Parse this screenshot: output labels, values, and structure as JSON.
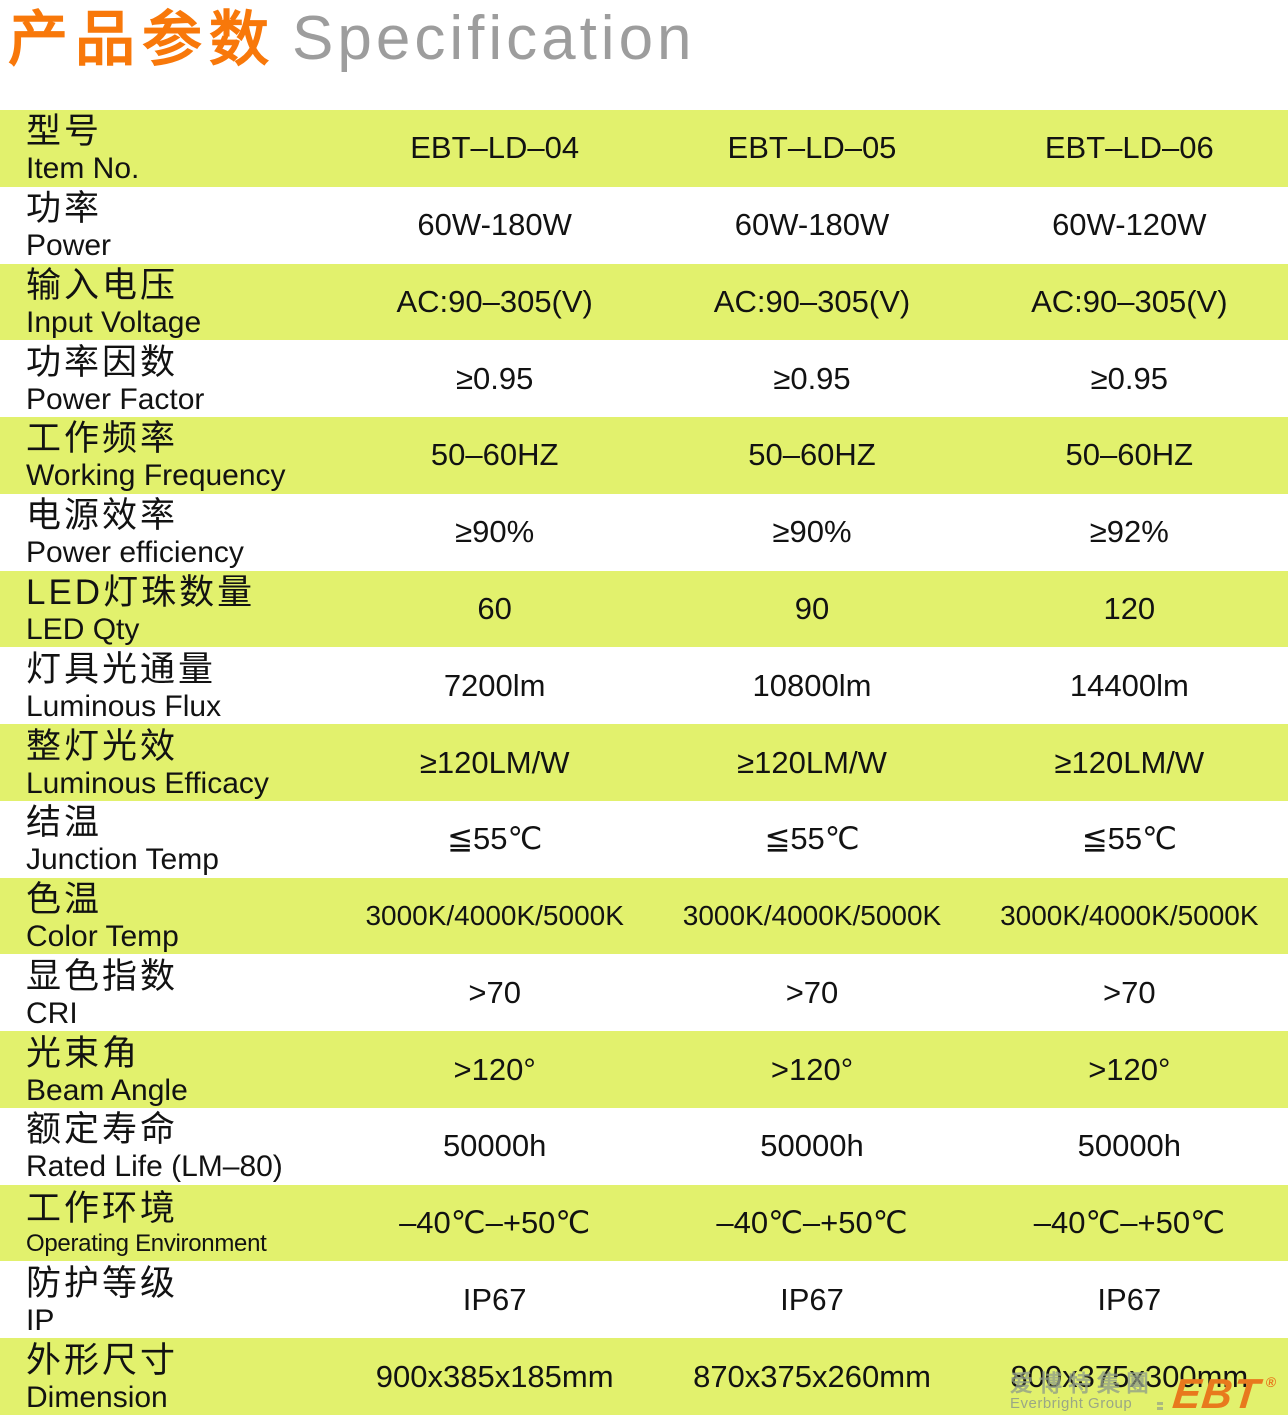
{
  "header": {
    "title_zh": "产品参数",
    "title_en": "Specification"
  },
  "table": {
    "rows": [
      {
        "zh": "型号",
        "en": "Item No.",
        "values": [
          "EBT–LD–04",
          "EBT–LD–05",
          "EBT–LD–06"
        ]
      },
      {
        "zh": "功率",
        "en": "Power",
        "values": [
          "60W-180W",
          "60W-180W",
          "60W-120W"
        ]
      },
      {
        "zh": "输入电压",
        "en": "Input Voltage",
        "values": [
          "AC:90–305(V)",
          "AC:90–305(V)",
          "AC:90–305(V)"
        ]
      },
      {
        "zh": "功率因数",
        "en": "Power Factor",
        "values": [
          "≥0.95",
          "≥0.95",
          "≥0.95"
        ]
      },
      {
        "zh": "工作频率",
        "en": "Working Frequency",
        "values": [
          "50–60HZ",
          "50–60HZ",
          "50–60HZ"
        ]
      },
      {
        "zh": "电源效率",
        "en": "Power efficiency",
        "values": [
          "≥90%",
          "≥90%",
          "≥92%"
        ]
      },
      {
        "zh": "LED灯珠数量",
        "en": "LED Qty",
        "values": [
          "60",
          "90",
          "120"
        ]
      },
      {
        "zh": "灯具光通量",
        "en": "Luminous Flux",
        "values": [
          "7200lm",
          "10800lm",
          "14400lm"
        ]
      },
      {
        "zh": "整灯光效",
        "en": "Luminous Efficacy",
        "values": [
          "≥120LM/W",
          "≥120LM/W",
          "≥120LM/W"
        ]
      },
      {
        "zh": "结温",
        "en": "Junction Temp",
        "values": [
          "≦55℃",
          "≦55℃",
          "≦55℃"
        ]
      },
      {
        "zh": "色温",
        "en": "Color Temp",
        "values": [
          "3000K/4000K/5000K",
          "3000K/4000K/5000K",
          "3000K/4000K/5000K"
        ]
      },
      {
        "zh": "显色指数",
        "en": "CRI",
        "values": [
          ">70",
          ">70",
          ">70"
        ]
      },
      {
        "zh": "光束角",
        "en": "Beam Angle",
        "values": [
          ">120°",
          ">120°",
          ">120°"
        ]
      },
      {
        "zh": "额定寿命",
        "en": "Rated Life (LM–80)",
        "values": [
          "50000h",
          "50000h",
          "50000h"
        ]
      },
      {
        "zh": "工作环境",
        "en": "Operating Environment",
        "values": [
          "–40℃–+50℃",
          "–40℃–+50℃",
          "–40℃–+50℃"
        ]
      },
      {
        "zh": "防护等级",
        "en": "IP",
        "values": [
          "IP67",
          "IP67",
          "IP67"
        ]
      },
      {
        "zh": "外形尺寸",
        "en": "Dimension",
        "values": [
          "900x385x185mm",
          "870x375x260mm",
          "800x375x300mm"
        ]
      }
    ]
  },
  "logo": {
    "company_zh": "爱博特集團",
    "company_en": "Everbright Group",
    "brand": "EBT",
    "registered": "®"
  },
  "colors": {
    "row_green": "#e2f16d",
    "title_orange": "#f8780a",
    "title_gray": "#9d9d9d",
    "logo_orange": "#e8791d",
    "logo_gray": "#93a089",
    "text": "#121212"
  }
}
